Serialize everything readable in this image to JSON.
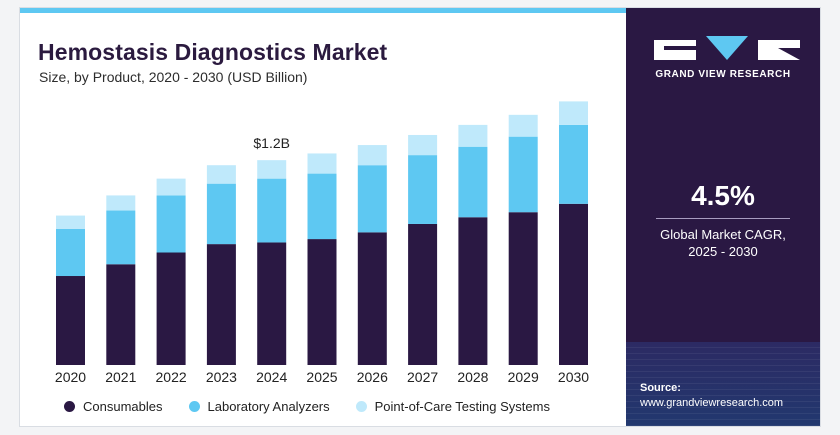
{
  "header": {
    "title": "Hemostasis Diagnostics Market",
    "subtitle": "Size, by Product, 2020 - 2030 (USD Billion)"
  },
  "sidebar": {
    "brand": "GRAND VIEW RESEARCH",
    "cagr_value": "4.5%",
    "cagr_label_line1": "Global Market CAGR,",
    "cagr_label_line2": "2025 - 2030",
    "source_label": "Source:",
    "source_url": "www.grandviewresearch.com"
  },
  "colors": {
    "consumables": "#2a1843",
    "laboratory_analyzers": "#5ec8f2",
    "point_of_care": "#bfe9fb",
    "panel_bg": "#2a1843"
  },
  "chart_data": {
    "type": "bar",
    "stacked": true,
    "title": "Hemostasis Diagnostics Market",
    "subtitle": "Size, by Product, 2020 - 2030 (USD Billion)",
    "categories": [
      "2020",
      "2021",
      "2022",
      "2023",
      "2024",
      "2025",
      "2026",
      "2027",
      "2028",
      "2029",
      "2030"
    ],
    "series": [
      {
        "name": "Consumables",
        "values": [
          0.53,
          0.6,
          0.67,
          0.72,
          0.73,
          0.75,
          0.79,
          0.84,
          0.88,
          0.91,
          0.96
        ]
      },
      {
        "name": "Laboratory Analyzers",
        "values": [
          0.28,
          0.32,
          0.34,
          0.36,
          0.38,
          0.39,
          0.4,
          0.41,
          0.42,
          0.45,
          0.47
        ]
      },
      {
        "name": "Point-of-Care Testing Systems",
        "values": [
          0.08,
          0.09,
          0.1,
          0.11,
          0.11,
          0.12,
          0.12,
          0.12,
          0.13,
          0.13,
          0.14
        ]
      }
    ],
    "annotations": [
      {
        "category": "2024",
        "text": "$1.2B"
      }
    ],
    "ylim": [
      0,
      1.62
    ],
    "grid": false,
    "legend": "bottom"
  }
}
